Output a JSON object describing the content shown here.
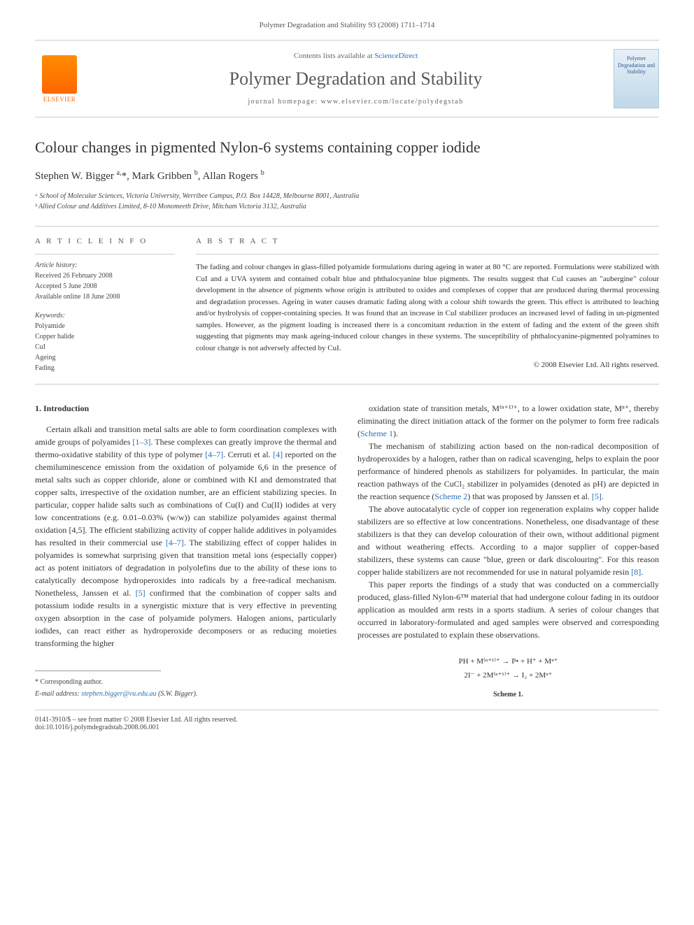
{
  "header_line": "Polymer Degradation and Stability 93 (2008) 1711–1714",
  "masthead": {
    "elsevier_label": "ELSEVIER",
    "contents_prefix": "Contents lists available at ",
    "contents_link": "ScienceDirect",
    "journal_name": "Polymer Degradation and Stability",
    "homepage_prefix": "journal homepage: ",
    "homepage_url": "www.elsevier.com/locate/polydegstab",
    "cover_text": "Polymer Degradation and Stability"
  },
  "title": "Colour changes in pigmented Nylon-6 systems containing copper iodide",
  "authors_html": "Stephen W. Bigger <sup>a,</sup>*, Mark Gribben <sup>b</sup>, Allan Rogers <sup>b</sup>",
  "affiliations": [
    "ᵃ School of Molecular Sciences, Victoria University, Werribee Campus, P.O. Box 14428, Melbourne 8001, Australia",
    "ᵇ Allied Colour and Additives Limited, 8-10 Monomeeth Drive, Mitcham Victoria 3132, Australia"
  ],
  "info_heading": "A R T I C L E   I N F O",
  "abstract_heading": "A B S T R A C T",
  "history_label": "Article history:",
  "history": [
    "Received 26 February 2008",
    "Accepted 5 June 2008",
    "Available online 18 June 2008"
  ],
  "keywords_label": "Keywords:",
  "keywords": [
    "Polyamide",
    "Copper halide",
    "CuI",
    "Ageing",
    "Fading"
  ],
  "abstract": "The fading and colour changes in glass-filled polyamide formulations during ageing in water at 80 °C are reported. Formulations were stabilized with CuI and a UVA system and contained cobalt blue and phthalocyanine blue pigments. The results suggest that CuI causes an \"aubergine\" colour development in the absence of pigments whose origin is attributed to oxides and complexes of copper that are produced during thermal processing and degradation processes. Ageing in water causes dramatic fading along with a colour shift towards the green. This effect is attributed to leaching and/or hydrolysis of copper-containing species. It was found that an increase in CuI stabilizer produces an increased level of fading in un-pigmented samples. However, as the pigment loading is increased there is a concomitant reduction in the extent of fading and the extent of the green shift suggesting that pigments may mask ageing-induced colour changes in these systems. The susceptibility of phthalocyanine-pigmented polyamines to colour change is not adversely affected by CuI.",
  "copyright": "© 2008 Elsevier Ltd. All rights reserved.",
  "section_1_heading": "1. Introduction",
  "body_col1_p1": "Certain alkali and transition metal salts are able to form coordination complexes with amide groups of polyamides [1–3]. These complexes can greatly improve the thermal and thermo-oxidative stability of this type of polymer [4–7]. Cerruti et al. [4] reported on the chemiluminescence emission from the oxidation of polyamide 6,6 in the presence of metal salts such as copper chloride, alone or combined with KI and demonstrated that copper salts, irrespective of the oxidation number, are an efficient stabilizing species. In particular, copper halide salts such as combinations of Cu(I) and Cu(II) iodides at very low concentrations (e.g. 0.01–0.03% (w/w)) can stabilize polyamides against thermal oxidation [4,5]. The efficient stabilizing activity of copper halide additives in polyamides has resulted in their commercial use [4–7]. The stabilizing effect of copper halides in polyamides is somewhat surprising given that transition metal ions (especially copper) act as potent initiators of degradation in polyolefins due to the ability of these ions to catalytically decompose hydroperoxides into radicals by a free-radical mechanism. Nonetheless, Janssen et al. [5] confirmed that the combination of copper salts and potassium iodide results in a synergistic mixture that is very effective in preventing oxygen absorption in the case of polyamide polymers. Halogen anions, particularly iodides, can react either as hydroperoxide decomposers or as reducing moieties transforming the higher",
  "body_col2_p1": "oxidation state of transition metals, M⁽ⁿ⁺¹⁾⁺, to a lower oxidation state, Mⁿ⁺, thereby eliminating the direct initiation attack of the former on the polymer to form free radicals (Scheme 1).",
  "body_col2_p2": "The mechanism of stabilizing action based on the non-radical decomposition of hydroperoxides by a halogen, rather than on radical scavenging, helps to explain the poor performance of hindered phenols as stabilizers for polyamides. In particular, the main reaction pathways of the CuCl₂ stabilizer in polyamides (denoted as pH) are depicted in the reaction sequence (Scheme 2) that was proposed by Janssen et al. [5].",
  "body_col2_p3": "The above autocatalytic cycle of copper ion regeneration explains why copper halide stabilizers are so effective at low concentrations. Nonetheless, one disadvantage of these stabilizers is that they can develop colouration of their own, without additional pigment and without weathering effects. According to a major supplier of copper-based stabilizers, these systems can cause \"blue, green or dark discolouring\". For this reason copper halide stabilizers are not recommended for use in natural polyamide resin [8].",
  "body_col2_p4": "This paper reports the findings of a study that was conducted on a commercially produced, glass-filled Nylon-6™ material that had undergone colour fading in its outdoor application as moulded arm rests in a sports stadium. A series of colour changes that occurred in laboratory-formulated and aged samples were observed and corresponding processes are postulated to explain these observations.",
  "scheme": {
    "line1": "PH + M⁽ⁿ⁺¹⁾⁺ → P• + H⁺ + Mⁿ⁺",
    "line2": "2I⁻ + 2M⁽ⁿ⁺¹⁾⁺ → I₂ + 2Mⁿ⁺",
    "label": "Scheme 1."
  },
  "footer": {
    "corr_label": "* Corresponding author.",
    "email_label": "E-mail address: ",
    "email": "stephen.bigger@vu.edu.au",
    "email_suffix": " (S.W. Bigger).",
    "issn_line": "0141-3910/$ – see front matter © 2008 Elsevier Ltd. All rights reserved.",
    "doi_line": "doi:10.1016/j.polymdegradstab.2008.06.001"
  }
}
